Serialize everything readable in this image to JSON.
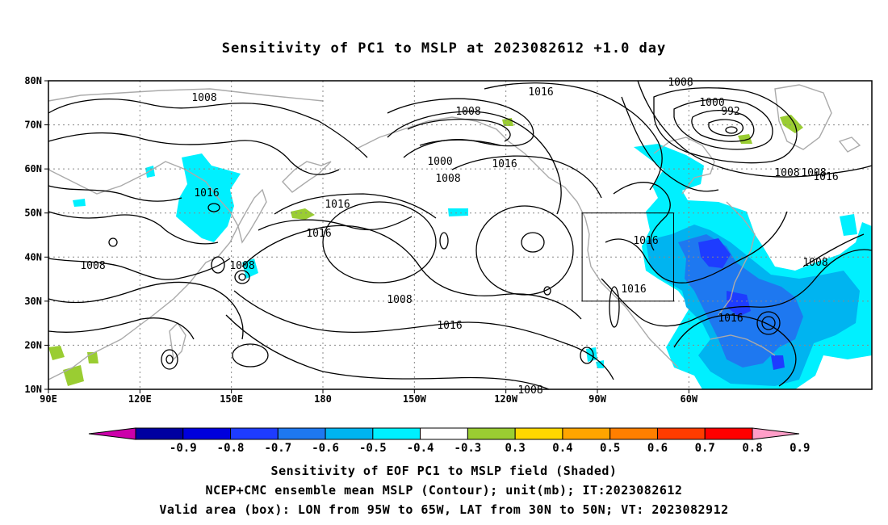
{
  "title": "Sensitivity of PC1 to MSLP at 2023082612 +1.0 day",
  "map": {
    "lon_labels": [
      "90E",
      "120E",
      "150E",
      "180",
      "150W",
      "120W",
      "90W",
      "60W"
    ],
    "lat_labels": [
      "80N",
      "70N",
      "60N",
      "50N",
      "40N",
      "30N",
      "20N",
      "10N"
    ],
    "contour_labels": [
      "1008",
      "1016",
      "1008",
      "1016",
      "1008",
      "1000",
      "992",
      "1008",
      "1016",
      "1016",
      "1008",
      "1016",
      "1008",
      "1016",
      "1016",
      "1008",
      "1016",
      "1008",
      "1016",
      "1016",
      "1008",
      "1000",
      "1008",
      "1008"
    ],
    "valid_box": {
      "lon_min": -95,
      "lon_max": -65,
      "lat_min": 30,
      "lat_max": 50
    }
  },
  "colorbar": {
    "labels": [
      "-0.9",
      "-0.8",
      "-0.7",
      "-0.6",
      "-0.5",
      "-0.4",
      "-0.3",
      "0.3",
      "0.4",
      "0.5",
      "0.6",
      "0.7",
      "0.8",
      "0.9"
    ],
    "colors": [
      "#cc00aa",
      "#0000a0",
      "#0000dd",
      "#1e3cff",
      "#1e78f0",
      "#00b4f0",
      "#00f0ff",
      "#ffffff",
      "#9acd32",
      "#ffd700",
      "#ffa500",
      "#ff7f00",
      "#ff3c00",
      "#ff0000",
      "#ff9ec8"
    ]
  },
  "captions": {
    "line1": "Sensitivity of EOF PC1 to MSLP field (Shaded)",
    "line2": "NCEP+CMC ensemble mean MSLP (Contour); unit(mb); IT:2023082612",
    "line3": "Valid area (box): LON from 95W to 65W, LAT from 30N to 50N; VT: 2023082912"
  }
}
